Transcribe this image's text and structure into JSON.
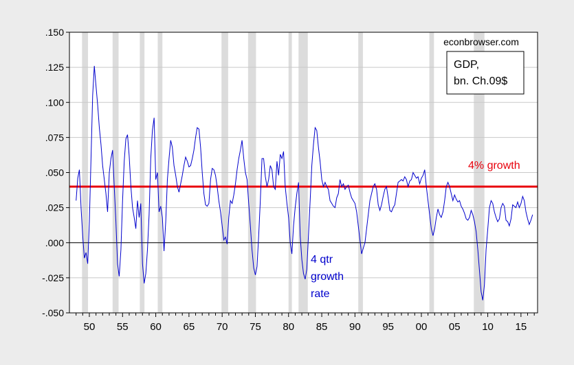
{
  "chart_data": {
    "type": "line",
    "x_axis": {
      "min": 1947.0,
      "max": 2017.5,
      "tick_values": [
        1950,
        1955,
        1960,
        1965,
        1970,
        1975,
        1980,
        1985,
        1990,
        1995,
        2000,
        2005,
        2010,
        2015
      ],
      "tick_labels": [
        "50",
        "55",
        "60",
        "65",
        "70",
        "75",
        "80",
        "85",
        "90",
        "95",
        "00",
        "05",
        "10",
        "15"
      ]
    },
    "y_axis": {
      "min": -0.05,
      "max": 0.15,
      "tick_values": [
        0.15,
        0.125,
        0.1,
        0.075,
        0.05,
        0.025,
        0.0,
        -0.025,
        -0.05
      ],
      "tick_labels": [
        ".150",
        ".125",
        ".100",
        ".075",
        ".050",
        ".025",
        ".000",
        "-.025",
        "-.050"
      ]
    },
    "grid": true,
    "recessions": [
      [
        1948.9,
        1949.8
      ],
      [
        1953.5,
        1954.4
      ],
      [
        1957.6,
        1958.3
      ],
      [
        1960.3,
        1961.0
      ],
      [
        1969.9,
        1970.9
      ],
      [
        1973.9,
        1975.1
      ],
      [
        1980.0,
        1980.5
      ],
      [
        1981.5,
        1982.9
      ],
      [
        1990.5,
        1991.2
      ],
      [
        2001.2,
        2001.9
      ],
      [
        2007.9,
        2009.5
      ]
    ],
    "series": [
      {
        "color": "#0000cc",
        "points": [
          [
            1948.0,
            0.03
          ],
          [
            1948.25,
            0.046
          ],
          [
            1948.5,
            0.052
          ],
          [
            1948.75,
            0.025
          ],
          [
            1949.0,
            0.005
          ],
          [
            1949.25,
            -0.011
          ],
          [
            1949.5,
            -0.007
          ],
          [
            1949.75,
            -0.015
          ],
          [
            1950.0,
            0.015
          ],
          [
            1950.25,
            0.06
          ],
          [
            1950.5,
            0.105
          ],
          [
            1950.75,
            0.126
          ],
          [
            1951.0,
            0.112
          ],
          [
            1951.25,
            0.098
          ],
          [
            1951.5,
            0.082
          ],
          [
            1951.75,
            0.07
          ],
          [
            1952.0,
            0.055
          ],
          [
            1952.25,
            0.045
          ],
          [
            1952.5,
            0.035
          ],
          [
            1952.75,
            0.022
          ],
          [
            1953.0,
            0.05
          ],
          [
            1953.25,
            0.06
          ],
          [
            1953.5,
            0.066
          ],
          [
            1953.75,
            0.04
          ],
          [
            1954.0,
            0.015
          ],
          [
            1954.25,
            -0.015
          ],
          [
            1954.5,
            -0.024
          ],
          [
            1954.75,
            -0.005
          ],
          [
            1955.0,
            0.03
          ],
          [
            1955.25,
            0.058
          ],
          [
            1955.5,
            0.074
          ],
          [
            1955.75,
            0.077
          ],
          [
            1956.0,
            0.062
          ],
          [
            1956.25,
            0.04
          ],
          [
            1956.5,
            0.025
          ],
          [
            1956.75,
            0.018
          ],
          [
            1957.0,
            0.01
          ],
          [
            1957.25,
            0.03
          ],
          [
            1957.5,
            0.018
          ],
          [
            1957.75,
            0.028
          ],
          [
            1958.0,
            -0.015
          ],
          [
            1958.25,
            -0.029
          ],
          [
            1958.5,
            -0.022
          ],
          [
            1958.75,
            -0.005
          ],
          [
            1959.0,
            0.02
          ],
          [
            1959.25,
            0.06
          ],
          [
            1959.5,
            0.08
          ],
          [
            1959.75,
            0.089
          ],
          [
            1960.0,
            0.045
          ],
          [
            1960.25,
            0.05
          ],
          [
            1960.5,
            0.022
          ],
          [
            1960.75,
            0.026
          ],
          [
            1961.0,
            0.018
          ],
          [
            1961.25,
            -0.006
          ],
          [
            1961.5,
            0.015
          ],
          [
            1961.75,
            0.045
          ],
          [
            1962.0,
            0.06
          ],
          [
            1962.25,
            0.073
          ],
          [
            1962.5,
            0.068
          ],
          [
            1962.75,
            0.055
          ],
          [
            1963.0,
            0.048
          ],
          [
            1963.25,
            0.04
          ],
          [
            1963.5,
            0.036
          ],
          [
            1963.75,
            0.042
          ],
          [
            1964.0,
            0.048
          ],
          [
            1964.25,
            0.055
          ],
          [
            1964.5,
            0.061
          ],
          [
            1964.75,
            0.058
          ],
          [
            1965.0,
            0.054
          ],
          [
            1965.25,
            0.055
          ],
          [
            1965.5,
            0.06
          ],
          [
            1965.75,
            0.066
          ],
          [
            1966.0,
            0.075
          ],
          [
            1966.25,
            0.082
          ],
          [
            1966.5,
            0.081
          ],
          [
            1966.75,
            0.068
          ],
          [
            1967.0,
            0.05
          ],
          [
            1967.25,
            0.035
          ],
          [
            1967.5,
            0.027
          ],
          [
            1967.75,
            0.026
          ],
          [
            1968.0,
            0.028
          ],
          [
            1968.25,
            0.045
          ],
          [
            1968.5,
            0.053
          ],
          [
            1968.75,
            0.052
          ],
          [
            1969.0,
            0.048
          ],
          [
            1969.25,
            0.04
          ],
          [
            1969.5,
            0.03
          ],
          [
            1969.75,
            0.022
          ],
          [
            1970.0,
            0.012
          ],
          [
            1970.25,
            0.002
          ],
          [
            1970.5,
            0.004
          ],
          [
            1970.75,
            -0.001
          ],
          [
            1971.0,
            0.018
          ],
          [
            1971.25,
            0.03
          ],
          [
            1971.5,
            0.028
          ],
          [
            1971.75,
            0.034
          ],
          [
            1972.0,
            0.042
          ],
          [
            1972.25,
            0.052
          ],
          [
            1972.5,
            0.06
          ],
          [
            1972.75,
            0.066
          ],
          [
            1973.0,
            0.073
          ],
          [
            1973.25,
            0.06
          ],
          [
            1973.5,
            0.05
          ],
          [
            1973.75,
            0.045
          ],
          [
            1974.0,
            0.028
          ],
          [
            1974.25,
            0.012
          ],
          [
            1974.5,
            -0.005
          ],
          [
            1974.75,
            -0.018
          ],
          [
            1975.0,
            -0.023
          ],
          [
            1975.25,
            -0.017
          ],
          [
            1975.5,
            0.005
          ],
          [
            1975.75,
            0.03
          ],
          [
            1976.0,
            0.06
          ],
          [
            1976.25,
            0.06
          ],
          [
            1976.5,
            0.047
          ],
          [
            1976.75,
            0.04
          ],
          [
            1977.0,
            0.045
          ],
          [
            1977.25,
            0.055
          ],
          [
            1977.5,
            0.052
          ],
          [
            1977.75,
            0.04
          ],
          [
            1978.0,
            0.038
          ],
          [
            1978.25,
            0.058
          ],
          [
            1978.5,
            0.048
          ],
          [
            1978.75,
            0.063
          ],
          [
            1979.0,
            0.06
          ],
          [
            1979.25,
            0.065
          ],
          [
            1979.5,
            0.04
          ],
          [
            1979.75,
            0.028
          ],
          [
            1980.0,
            0.018
          ],
          [
            1980.25,
            0.0
          ],
          [
            1980.5,
            -0.008
          ],
          [
            1980.75,
            0.012
          ],
          [
            1981.0,
            0.025
          ],
          [
            1981.25,
            0.035
          ],
          [
            1981.5,
            0.043
          ],
          [
            1981.75,
            0.005
          ],
          [
            1982.0,
            -0.012
          ],
          [
            1982.25,
            -0.022
          ],
          [
            1982.5,
            -0.026
          ],
          [
            1982.75,
            -0.019
          ],
          [
            1983.0,
            0.005
          ],
          [
            1983.25,
            0.03
          ],
          [
            1983.5,
            0.055
          ],
          [
            1983.75,
            0.07
          ],
          [
            1984.0,
            0.082
          ],
          [
            1984.25,
            0.08
          ],
          [
            1984.5,
            0.068
          ],
          [
            1984.75,
            0.058
          ],
          [
            1985.0,
            0.045
          ],
          [
            1985.25,
            0.04
          ],
          [
            1985.5,
            0.043
          ],
          [
            1985.75,
            0.04
          ],
          [
            1986.0,
            0.038
          ],
          [
            1986.25,
            0.03
          ],
          [
            1986.5,
            0.028
          ],
          [
            1986.75,
            0.026
          ],
          [
            1987.0,
            0.025
          ],
          [
            1987.25,
            0.032
          ],
          [
            1987.5,
            0.035
          ],
          [
            1987.75,
            0.045
          ],
          [
            1988.0,
            0.04
          ],
          [
            1988.25,
            0.042
          ],
          [
            1988.5,
            0.038
          ],
          [
            1988.75,
            0.04
          ],
          [
            1989.0,
            0.041
          ],
          [
            1989.25,
            0.036
          ],
          [
            1989.5,
            0.032
          ],
          [
            1989.75,
            0.03
          ],
          [
            1990.0,
            0.028
          ],
          [
            1990.25,
            0.022
          ],
          [
            1990.5,
            0.012
          ],
          [
            1990.75,
            0.002
          ],
          [
            1991.0,
            -0.008
          ],
          [
            1991.25,
            -0.004
          ],
          [
            1991.5,
            0.0
          ],
          [
            1991.75,
            0.01
          ],
          [
            1992.0,
            0.02
          ],
          [
            1992.25,
            0.03
          ],
          [
            1992.5,
            0.035
          ],
          [
            1992.75,
            0.04
          ],
          [
            1993.0,
            0.042
          ],
          [
            1993.25,
            0.038
          ],
          [
            1993.5,
            0.027
          ],
          [
            1993.75,
            0.023
          ],
          [
            1994.0,
            0.027
          ],
          [
            1994.25,
            0.033
          ],
          [
            1994.5,
            0.038
          ],
          [
            1994.75,
            0.04
          ],
          [
            1995.0,
            0.032
          ],
          [
            1995.25,
            0.023
          ],
          [
            1995.5,
            0.022
          ],
          [
            1995.75,
            0.025
          ],
          [
            1996.0,
            0.027
          ],
          [
            1996.25,
            0.035
          ],
          [
            1996.5,
            0.043
          ],
          [
            1996.75,
            0.044
          ],
          [
            1997.0,
            0.045
          ],
          [
            1997.25,
            0.044
          ],
          [
            1997.5,
            0.047
          ],
          [
            1997.75,
            0.045
          ],
          [
            1998.0,
            0.04
          ],
          [
            1998.25,
            0.044
          ],
          [
            1998.5,
            0.045
          ],
          [
            1998.75,
            0.05
          ],
          [
            1999.0,
            0.048
          ],
          [
            1999.25,
            0.046
          ],
          [
            1999.5,
            0.047
          ],
          [
            1999.75,
            0.042
          ],
          [
            2000.0,
            0.046
          ],
          [
            2000.25,
            0.048
          ],
          [
            2000.5,
            0.052
          ],
          [
            2000.75,
            0.04
          ],
          [
            2001.0,
            0.03
          ],
          [
            2001.25,
            0.02
          ],
          [
            2001.5,
            0.01
          ],
          [
            2001.75,
            0.005
          ],
          [
            2002.0,
            0.01
          ],
          [
            2002.25,
            0.018
          ],
          [
            2002.5,
            0.024
          ],
          [
            2002.75,
            0.02
          ],
          [
            2003.0,
            0.018
          ],
          [
            2003.25,
            0.022
          ],
          [
            2003.5,
            0.03
          ],
          [
            2003.75,
            0.04
          ],
          [
            2004.0,
            0.043
          ],
          [
            2004.25,
            0.04
          ],
          [
            2004.5,
            0.035
          ],
          [
            2004.75,
            0.03
          ],
          [
            2005.0,
            0.034
          ],
          [
            2005.25,
            0.031
          ],
          [
            2005.5,
            0.029
          ],
          [
            2005.75,
            0.03
          ],
          [
            2006.0,
            0.026
          ],
          [
            2006.25,
            0.024
          ],
          [
            2006.5,
            0.021
          ],
          [
            2006.75,
            0.017
          ],
          [
            2007.0,
            0.016
          ],
          [
            2007.25,
            0.018
          ],
          [
            2007.5,
            0.023
          ],
          [
            2007.75,
            0.02
          ],
          [
            2008.0,
            0.015
          ],
          [
            2008.25,
            0.008
          ],
          [
            2008.5,
            -0.005
          ],
          [
            2008.75,
            -0.02
          ],
          [
            2009.0,
            -0.035
          ],
          [
            2009.25,
            -0.041
          ],
          [
            2009.5,
            -0.03
          ],
          [
            2009.75,
            -0.005
          ],
          [
            2010.0,
            0.01
          ],
          [
            2010.25,
            0.025
          ],
          [
            2010.5,
            0.03
          ],
          [
            2010.75,
            0.028
          ],
          [
            2011.0,
            0.022
          ],
          [
            2011.25,
            0.018
          ],
          [
            2011.5,
            0.015
          ],
          [
            2011.75,
            0.017
          ],
          [
            2012.0,
            0.025
          ],
          [
            2012.25,
            0.028
          ],
          [
            2012.5,
            0.026
          ],
          [
            2012.75,
            0.016
          ],
          [
            2013.0,
            0.015
          ],
          [
            2013.25,
            0.012
          ],
          [
            2013.5,
            0.017
          ],
          [
            2013.75,
            0.027
          ],
          [
            2014.0,
            0.026
          ],
          [
            2014.25,
            0.025
          ],
          [
            2014.5,
            0.029
          ],
          [
            2014.75,
            0.025
          ],
          [
            2015.0,
            0.028
          ],
          [
            2015.25,
            0.033
          ],
          [
            2015.5,
            0.03
          ],
          [
            2015.75,
            0.022
          ],
          [
            2016.0,
            0.017
          ],
          [
            2016.25,
            0.013
          ],
          [
            2016.5,
            0.016
          ],
          [
            2016.75,
            0.02
          ]
        ]
      }
    ],
    "reference_line": {
      "value": 0.04,
      "color": "#e8000b",
      "label": "4% growth"
    },
    "zero_line": 0.0,
    "annotations": {
      "source": "econbrowser.com",
      "legend_box_line1": "GDP,",
      "legend_box_line2": "bn. Ch.09$",
      "series_label_line1": "4 qtr",
      "series_label_line2": "growth",
      "series_label_line3": "rate"
    }
  }
}
